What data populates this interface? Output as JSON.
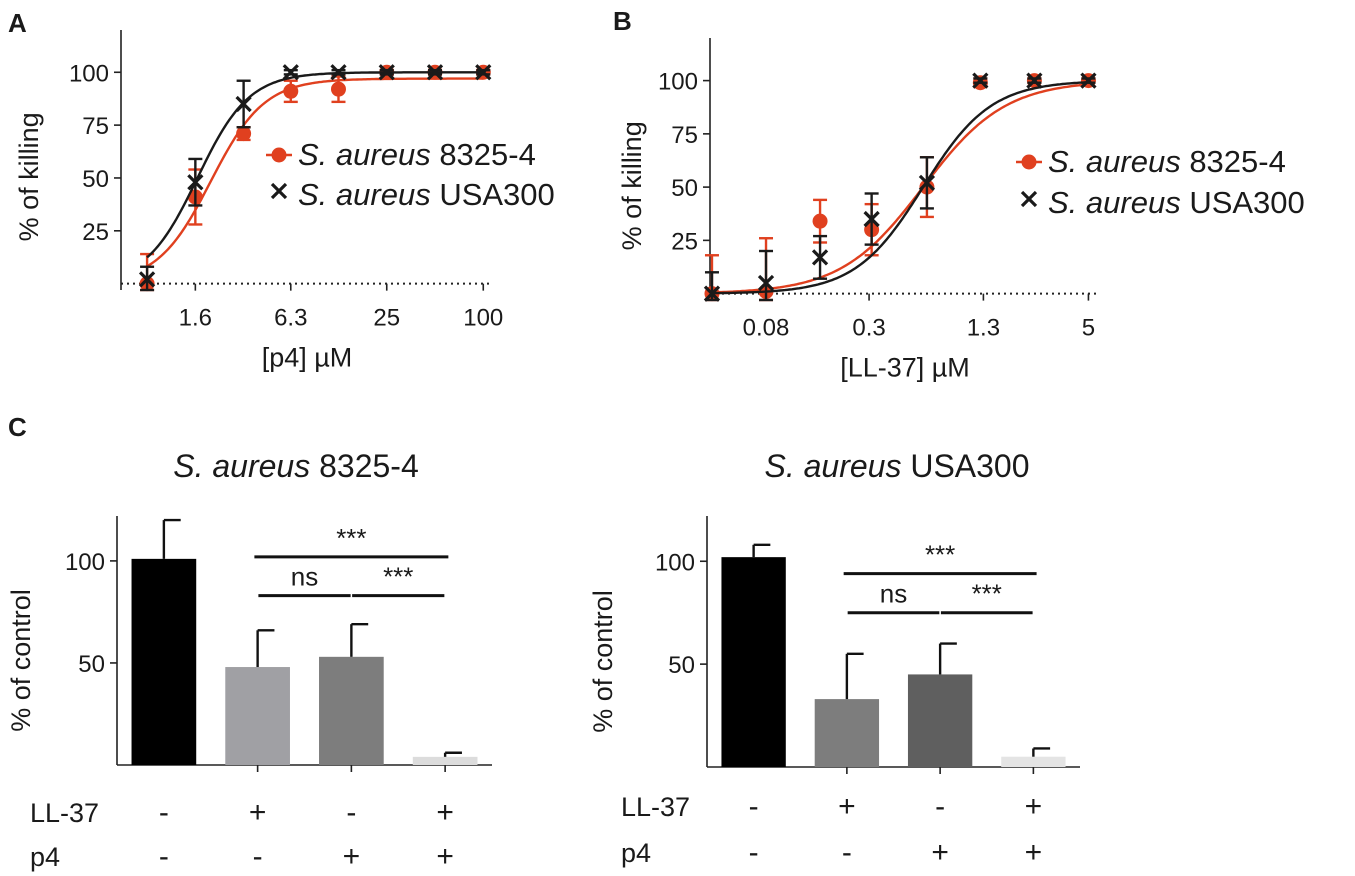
{
  "chart_data": [
    {
      "panel": "A",
      "type": "line",
      "title": "",
      "xlabel": "[p4] µM",
      "ylabel": "% of killing",
      "xscale": "log2",
      "x_ticks": [
        "1.6",
        "6.3",
        "25",
        "100"
      ],
      "x_tick_values": [
        1.6,
        6.3,
        25,
        100
      ],
      "y_ticks": [
        "25",
        "50",
        "75",
        "100"
      ],
      "y_tick_values": [
        25,
        50,
        75,
        100
      ],
      "xlim": [
        0.55,
        115
      ],
      "ylim": [
        -3,
        120
      ],
      "legend_position": "right",
      "series": [
        {
          "name": "S. aureus 8325-4",
          "name_italic": "S. aureus",
          "name_rest": "8325-4",
          "color": "#e0401f",
          "marker": "circle",
          "x": [
            0.8,
            1.6,
            3.2,
            6.3,
            12.5,
            25,
            50,
            100
          ],
          "y": [
            0,
            41,
            71,
            91,
            92,
            100,
            100,
            100
          ],
          "err": [
            14,
            13,
            3,
            5,
            6,
            1,
            1,
            1
          ],
          "fit_ec50": 2.0,
          "fit_hill": 2.6,
          "fit_top": 97
        },
        {
          "name": "S. aureus USA300",
          "name_italic": "S. aureus",
          "name_rest": "USA300",
          "color": "#1a1a1a",
          "marker": "x",
          "x": [
            0.8,
            1.6,
            3.2,
            6.3,
            12.5,
            25,
            50,
            100
          ],
          "y": [
            2,
            48,
            85,
            100,
            100,
            100,
            100,
            100
          ],
          "err": [
            6,
            11,
            11,
            1,
            1,
            1,
            1,
            1
          ],
          "fit_ec50": 1.65,
          "fit_hill": 2.7,
          "fit_top": 100
        }
      ]
    },
    {
      "panel": "B",
      "type": "line",
      "title": "",
      "xlabel": "[LL-37] µM",
      "ylabel": "% of killing",
      "xscale": "log2",
      "x_ticks": [
        "0.08",
        "0.3",
        "1.3",
        "5"
      ],
      "x_tick_values": [
        0.08,
        0.3,
        1.3,
        5
      ],
      "y_ticks": [
        "25",
        "50",
        "75",
        "100"
      ],
      "y_tick_values": [
        25,
        50,
        75,
        100
      ],
      "xlim": [
        0.039,
        5.8
      ],
      "ylim": [
        -3,
        120
      ],
      "legend_position": "right",
      "series": [
        {
          "name": "S. aureus 8325-4",
          "name_italic": "S. aureus",
          "name_rest": "8325-4",
          "color": "#e0401f",
          "marker": "circle",
          "x": [
            0.04,
            0.08,
            0.16,
            0.31,
            0.63,
            1.25,
            2.5,
            5
          ],
          "y": [
            0,
            1,
            34,
            30,
            50,
            99,
            100,
            100
          ],
          "err": [
            18,
            25,
            10,
            12,
            14,
            2,
            1,
            1
          ],
          "fit_ec50": 0.6,
          "fit_hill": 1.9,
          "fit_top": 100
        },
        {
          "name": "S. aureus USA300",
          "name_italic": "S. aureus",
          "name_rest": "USA300",
          "color": "#1a1a1a",
          "marker": "x",
          "x": [
            0.04,
            0.08,
            0.16,
            0.31,
            0.63,
            1.25,
            2.5,
            5
          ],
          "y": [
            0,
            5,
            17,
            35,
            52,
            100,
            100,
            100
          ],
          "err": [
            10,
            15,
            10,
            12,
            12,
            1,
            1,
            1
          ],
          "fit_ec50": 0.6,
          "fit_hill": 2.3,
          "fit_top": 100
        }
      ]
    },
    {
      "panel": "C",
      "type": "bar",
      "title": "S. aureus 8325-4",
      "title_italic": "S. aureus",
      "title_rest": "8325-4",
      "ylabel": "% of control",
      "y_ticks": [
        "50",
        "100"
      ],
      "y_tick_values": [
        50,
        100
      ],
      "ylim": [
        0,
        122
      ],
      "values": [
        101,
        48,
        53,
        4
      ],
      "errors": [
        19,
        18,
        16,
        2
      ],
      "colors": [
        "#000000",
        "#a0a0a4",
        "#7d7d7d",
        "#dcdcdc"
      ],
      "rows": [
        {
          "label": "LL-37",
          "signs": [
            "-",
            "+",
            "-",
            "+"
          ]
        },
        {
          "label": "p4",
          "signs": [
            "-",
            "-",
            "+",
            "+"
          ]
        }
      ],
      "comparisons": [
        {
          "from": 1,
          "to": 3,
          "label": "***",
          "y": 102
        },
        {
          "from": 1,
          "to": 2,
          "label": "ns",
          "y": 83
        },
        {
          "from": 2,
          "to": 3,
          "label": "***",
          "y": 83
        }
      ]
    },
    {
      "panel": "",
      "type": "bar",
      "title": "S. aureus USA300",
      "title_italic": "S. aureus",
      "title_rest": "USA300",
      "ylabel": "% of control",
      "y_ticks": [
        "50",
        "100"
      ],
      "y_tick_values": [
        50,
        100
      ],
      "ylim": [
        0,
        122
      ],
      "values": [
        102,
        33,
        45,
        5
      ],
      "errors": [
        6,
        22,
        15,
        4
      ],
      "colors": [
        "#000000",
        "#7d7d7d",
        "#5f5f5f",
        "#e4e4e4"
      ],
      "rows": [
        {
          "label": "LL-37",
          "signs": [
            "-",
            "+",
            "-",
            "+"
          ]
        },
        {
          "label": "p4",
          "signs": [
            "-",
            "-",
            "+",
            "+"
          ]
        }
      ],
      "comparisons": [
        {
          "from": 1,
          "to": 3,
          "label": "***",
          "y": 94
        },
        {
          "from": 1,
          "to": 2,
          "label": "ns",
          "y": 75
        },
        {
          "from": 2,
          "to": 3,
          "label": "***",
          "y": 75
        }
      ]
    }
  ],
  "panel_letters": [
    "A",
    "B",
    "C"
  ]
}
